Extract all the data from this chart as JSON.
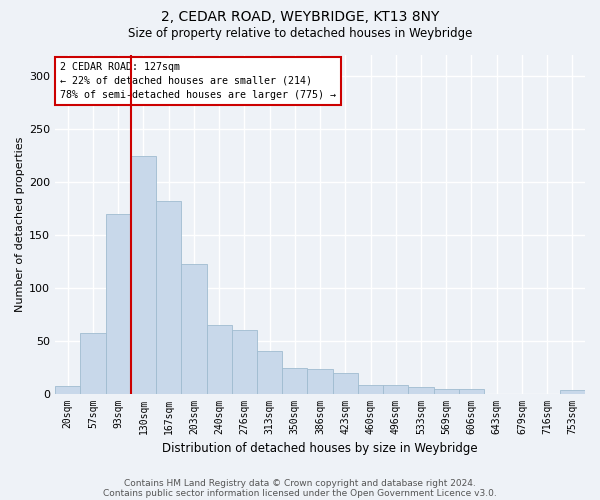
{
  "title": "2, CEDAR ROAD, WEYBRIDGE, KT13 8NY",
  "subtitle": "Size of property relative to detached houses in Weybridge",
  "xlabel": "Distribution of detached houses by size in Weybridge",
  "ylabel": "Number of detached properties",
  "bar_color": "#c8d8ea",
  "bar_edge_color": "#a0bcd0",
  "categories": [
    "20sqm",
    "57sqm",
    "93sqm",
    "130sqm",
    "167sqm",
    "203sqm",
    "240sqm",
    "276sqm",
    "313sqm",
    "350sqm",
    "386sqm",
    "423sqm",
    "460sqm",
    "496sqm",
    "533sqm",
    "569sqm",
    "606sqm",
    "643sqm",
    "679sqm",
    "716sqm",
    "753sqm"
  ],
  "values": [
    7,
    57,
    170,
    225,
    182,
    122,
    65,
    60,
    40,
    24,
    23,
    19,
    8,
    8,
    6,
    4,
    4,
    0,
    0,
    0,
    3
  ],
  "ylim": [
    0,
    320
  ],
  "yticks": [
    0,
    50,
    100,
    150,
    200,
    250,
    300
  ],
  "vline_index": 3,
  "vline_color": "#cc0000",
  "annotation_text": "2 CEDAR ROAD: 127sqm\n← 22% of detached houses are smaller (214)\n78% of semi-detached houses are larger (775) →",
  "annotation_box_color": "#ffffff",
  "annotation_box_edge": "#cc0000",
  "footer1": "Contains HM Land Registry data © Crown copyright and database right 2024.",
  "footer2": "Contains public sector information licensed under the Open Government Licence v3.0.",
  "background_color": "#eef2f7",
  "grid_color": "#ffffff"
}
